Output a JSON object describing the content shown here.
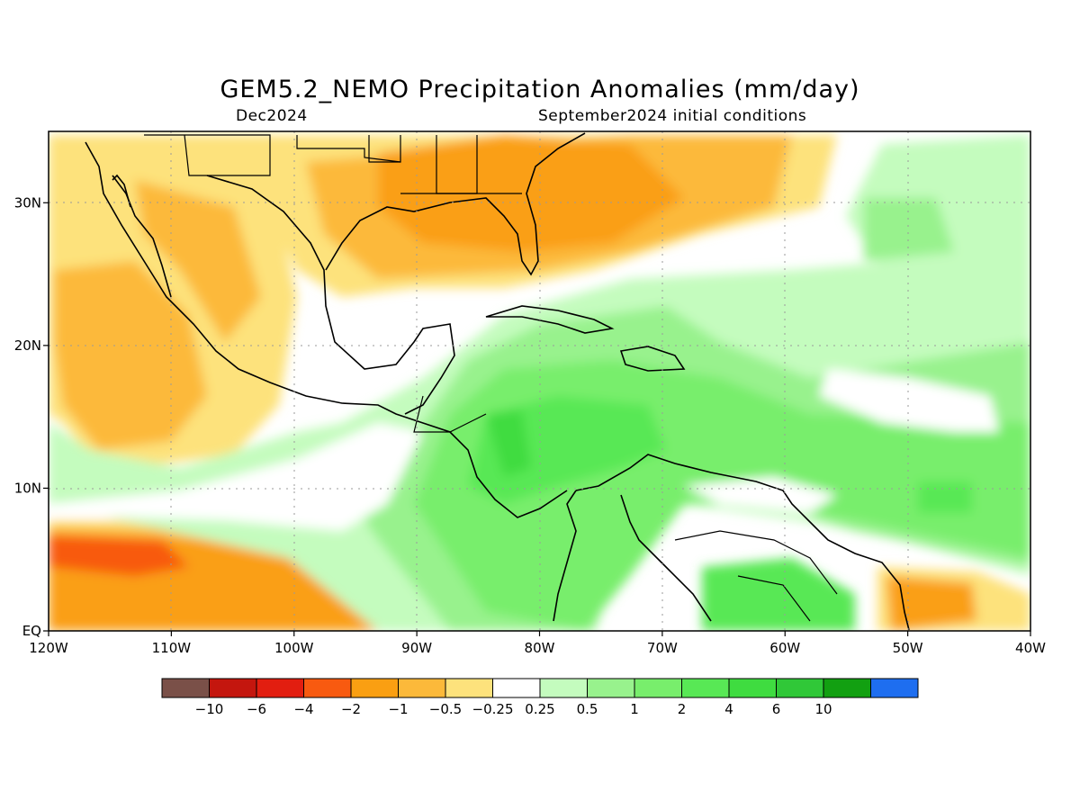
{
  "title": "GEM5.2_NEMO Precipitation Anomalies (mm/day)",
  "subtitle_left": "Dec2024",
  "subtitle_right": "September2024 initial conditions",
  "map": {
    "lon_range": [
      -120,
      -40
    ],
    "lat_range": [
      0,
      35
    ],
    "grid": "dotted",
    "x_ticks": [
      "120W",
      "110W",
      "100W",
      "90W",
      "80W",
      "70W",
      "60W",
      "50W",
      "40W"
    ],
    "y_ticks": [
      "EQ",
      "10N",
      "20N",
      "30N"
    ]
  },
  "colorbar": {
    "colors": [
      "#7a5048",
      "#c4160e",
      "#e21e10",
      "#f85a10",
      "#fa9f12",
      "#fcb93a",
      "#fde27c",
      "#ffffff",
      "#c4fcbe",
      "#98f28d",
      "#78ee6c",
      "#58e855",
      "#3fdc40",
      "#30c838",
      "#12a011",
      "#1e6ef0"
    ],
    "labels": [
      "−10",
      "−6",
      "−4",
      "−2",
      "−1",
      "−0.5",
      "−0.25",
      "0.25",
      "0.5",
      "1",
      "2",
      "4",
      "6",
      "10"
    ]
  }
}
